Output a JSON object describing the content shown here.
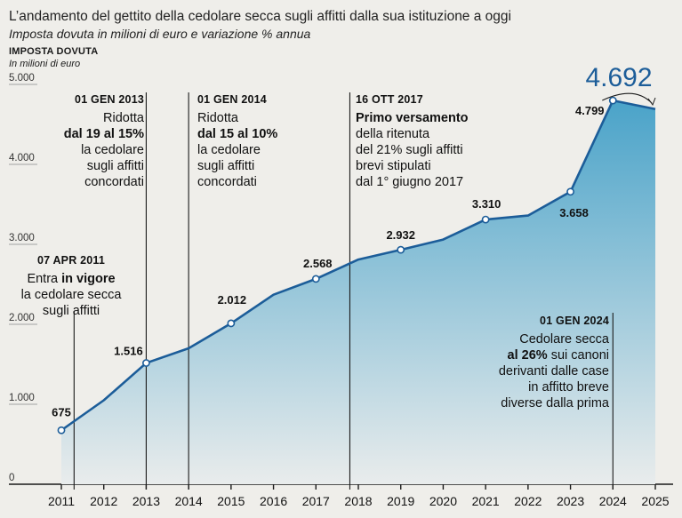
{
  "header": {
    "title": "L’andamento del gettito della cedolare secca sugli affitti dalla sua istituzione a oggi",
    "subtitle": "Imposta dovuta in milioni di euro e variazione % annua",
    "ytitle": "IMPOSTA DOVUTA",
    "yunit": "In milioni di euro"
  },
  "chart_data": {
    "type": "area",
    "title": "L’andamento del gettito della cedolare secca sugli affitti dalla sua istituzione a oggi",
    "ylabel": "IMPOSTA DOVUTA",
    "ylim": [
      0,
      5000
    ],
    "yticks": [
      0,
      1000,
      2000,
      3000,
      4000,
      5000
    ],
    "ytick_labels": [
      "0",
      "1.000",
      "2.000",
      "3.000",
      "4.000",
      "5.000"
    ],
    "x": [
      2011,
      2012,
      2013,
      2014,
      2015,
      2016,
      2017,
      2018,
      2019,
      2020,
      2021,
      2022,
      2023,
      2024,
      2025
    ],
    "x_labels": [
      "2011",
      "2012",
      "2013",
      "2014",
      "2015",
      "2016",
      "2017",
      "2018",
      "2019",
      "2020",
      "2021",
      "2022",
      "2023",
      "2024",
      "2025"
    ],
    "values": [
      675,
      1050,
      1516,
      1700,
      2012,
      2370,
      2568,
      2810,
      2932,
      3060,
      3310,
      3360,
      3658,
      4799,
      4692
    ],
    "data_labels": [
      {
        "index": 0,
        "text": "675"
      },
      {
        "index": 2,
        "text": "1.516"
      },
      {
        "index": 4,
        "text": "2.012"
      },
      {
        "index": 6,
        "text": "2.568"
      },
      {
        "index": 8,
        "text": "2.932"
      },
      {
        "index": 10,
        "text": "3.310"
      },
      {
        "index": 12,
        "text": "3.658"
      },
      {
        "index": 13,
        "text": "4.799"
      },
      {
        "index": 14,
        "text": "4.692"
      }
    ],
    "grid": false,
    "colors": {
      "line": "#1c5d99",
      "fill_top": "#4aa3c9",
      "fill_bottom": "#e9ecec",
      "background": "#efeeea"
    },
    "annotations": [
      {
        "year": 2011.3,
        "head": "07 APR 2011",
        "lines": [
          {
            "pre": "Entra ",
            "bold": "in vigore",
            "post": ""
          },
          {
            "pre": "la cedolare secca",
            "bold": "",
            "post": ""
          },
          {
            "pre": "sugli affitti",
            "bold": "",
            "post": ""
          }
        ]
      },
      {
        "year": 2013,
        "head": "01 GEN 2013",
        "lines": [
          {
            "pre": "Ridotta",
            "bold": "",
            "post": ""
          },
          {
            "pre": "",
            "bold": "dal 19 al 15%",
            "post": ""
          },
          {
            "pre": "la cedolare",
            "bold": "",
            "post": ""
          },
          {
            "pre": "sugli affitti",
            "bold": "",
            "post": ""
          },
          {
            "pre": "concordati",
            "bold": "",
            "post": ""
          }
        ]
      },
      {
        "year": 2014,
        "head": "01 GEN 2014",
        "lines": [
          {
            "pre": "Ridotta",
            "bold": "",
            "post": ""
          },
          {
            "pre": "",
            "bold": "dal 15 al 10%",
            "post": ""
          },
          {
            "pre": "la cedolare",
            "bold": "",
            "post": ""
          },
          {
            "pre": "sugli affitti",
            "bold": "",
            "post": ""
          },
          {
            "pre": "concordati",
            "bold": "",
            "post": ""
          }
        ]
      },
      {
        "year": 2017.8,
        "head": "16 OTT 2017",
        "lines": [
          {
            "pre": "",
            "bold": "Primo versamento",
            "post": ""
          },
          {
            "pre": "della ritenuta",
            "bold": "",
            "post": ""
          },
          {
            "pre": "del 21% sugli affitti",
            "bold": "",
            "post": ""
          },
          {
            "pre": "brevi stipulati",
            "bold": "",
            "post": ""
          },
          {
            "pre": "dal 1° giugno 2017",
            "bold": "",
            "post": ""
          }
        ]
      },
      {
        "year": 2024,
        "head": "01 GEN 2024",
        "lines": [
          {
            "pre": "Cedolare secca",
            "bold": "",
            "post": ""
          },
          {
            "pre": "",
            "bold": "al 26%",
            "post": " sui canoni"
          },
          {
            "pre": "derivanti dalle case",
            "bold": "",
            "post": ""
          },
          {
            "pre": "in affitto breve",
            "bold": "",
            "post": ""
          },
          {
            "pre": "diverse dalla prima",
            "bold": "",
            "post": ""
          }
        ]
      }
    ]
  }
}
